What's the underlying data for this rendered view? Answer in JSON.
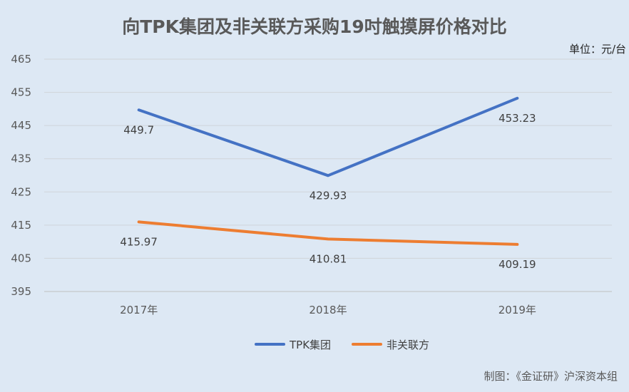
{
  "chart_data": {
    "type": "line",
    "title": "向TPK集团及非关联方采购19吋触摸屏价格对比",
    "unit": "单位：元/台",
    "categories": [
      "2017年",
      "2018年",
      "2019年"
    ],
    "ylim": [
      395,
      465
    ],
    "yticks": [
      395,
      405,
      415,
      425,
      435,
      445,
      455,
      465
    ],
    "grid": true,
    "legend_position": "bottom",
    "series": [
      {
        "name": "TPK集团",
        "color": "#4472c4",
        "values": [
          449.7,
          429.93,
          453.23
        ],
        "labels": [
          "449.7",
          "429.93",
          "453.23"
        ]
      },
      {
        "name": "非关联方",
        "color": "#ed7d31",
        "values": [
          415.97,
          410.81,
          409.19
        ],
        "labels": [
          "415.97",
          "410.81",
          "409.19"
        ]
      }
    ],
    "source": "制图：《金证研》沪深资本组"
  }
}
